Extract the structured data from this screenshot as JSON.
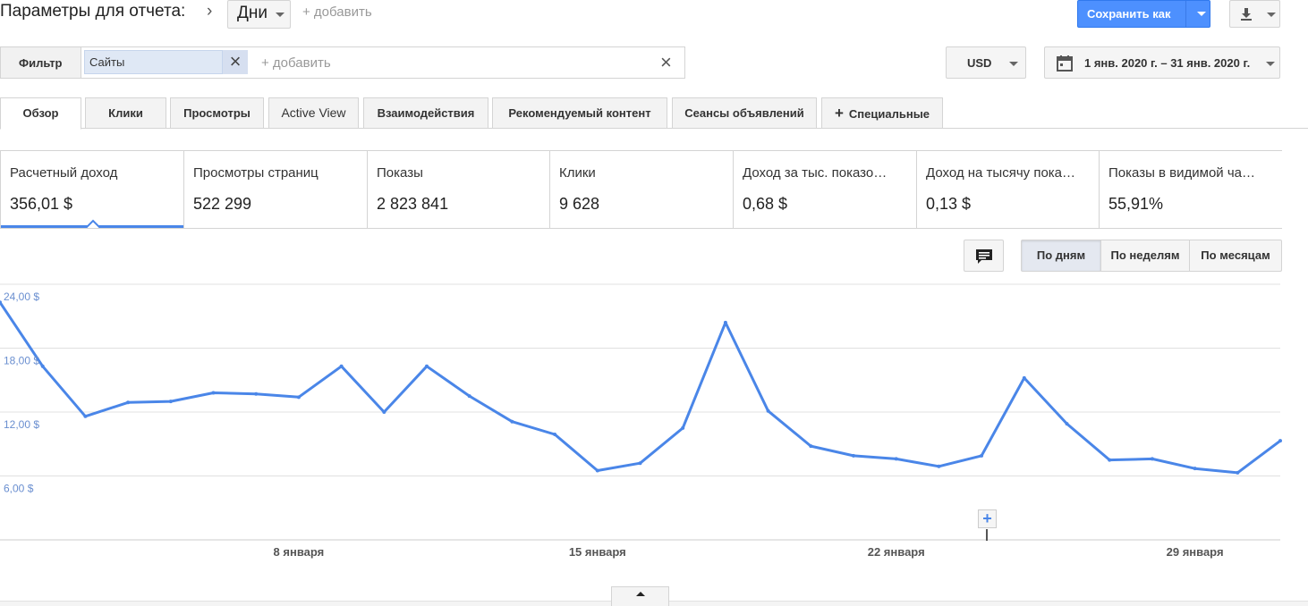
{
  "header": {
    "title": "Параметры для отчета:",
    "dimension": "Дни",
    "add_dimension": "+ добавить",
    "save_label": "Сохранить как"
  },
  "filter": {
    "label": "Фильтр",
    "chip": "Сайты",
    "add": "+ добавить"
  },
  "currency": "USD",
  "date_range": "1 янв. 2020 г. – 31 янв. 2020 г.",
  "tabs": [
    {
      "label": "Обзор"
    },
    {
      "label": "Клики"
    },
    {
      "label": "Просмотры"
    },
    {
      "label": "Active View"
    },
    {
      "label": "Взаимодействия"
    },
    {
      "label": "Рекомендуемый контент"
    },
    {
      "label": "Сеансы объявлений"
    },
    {
      "label": "Специальные"
    }
  ],
  "metrics": [
    {
      "label": "Расчетный доход",
      "value": "356,01 $"
    },
    {
      "label": "Просмотры страниц",
      "value": "522 299"
    },
    {
      "label": "Показы",
      "value": "2 823 841"
    },
    {
      "label": "Клики",
      "value": "9 628"
    },
    {
      "label": "Доход за тыс. показо…",
      "value": "0,68 $"
    },
    {
      "label": "Доход на тысячу пока…",
      "value": "0,13 $"
    },
    {
      "label": "Показы в видимой ча…",
      "value": "55,91%"
    }
  ],
  "granularity": {
    "days": "По дням",
    "weeks": "По неделям",
    "months": "По месяцам",
    "selected": "days"
  },
  "colors": {
    "accent": "#4a86e8",
    "primary_button": "#4d90fe"
  },
  "chart_data": {
    "type": "line",
    "title": "",
    "xlabel": "",
    "ylabel": "",
    "x": [
      1,
      2,
      3,
      4,
      5,
      6,
      7,
      8,
      9,
      10,
      11,
      12,
      13,
      14,
      15,
      16,
      17,
      18,
      19,
      20,
      21,
      22,
      23,
      24,
      25,
      26,
      27,
      28,
      29,
      30,
      31
    ],
    "x_ticks": [
      {
        "day": 8,
        "label": "8 января"
      },
      {
        "day": 15,
        "label": "15 января"
      },
      {
        "day": 22,
        "label": "22 января"
      },
      {
        "day": 29,
        "label": "29 января"
      }
    ],
    "y_ticks": [
      {
        "value": 6,
        "label": "6,00 $"
      },
      {
        "value": 12,
        "label": "12,00 $"
      },
      {
        "value": 18,
        "label": "18,00 $"
      },
      {
        "value": 24,
        "label": "24,00 $"
      }
    ],
    "ylim": [
      0,
      24
    ],
    "grid": true,
    "series": [
      {
        "name": "Расчетный доход",
        "color": "#4a86e8",
        "values": [
          22.3,
          16.3,
          11.6,
          12.9,
          13.0,
          13.8,
          13.7,
          13.4,
          16.3,
          12.0,
          16.3,
          13.5,
          11.1,
          9.9,
          6.5,
          7.2,
          10.5,
          20.4,
          12.1,
          8.8,
          7.9,
          7.6,
          6.9,
          7.9,
          15.2,
          10.9,
          7.5,
          7.6,
          6.7,
          6.3,
          9.3
        ]
      }
    ]
  }
}
